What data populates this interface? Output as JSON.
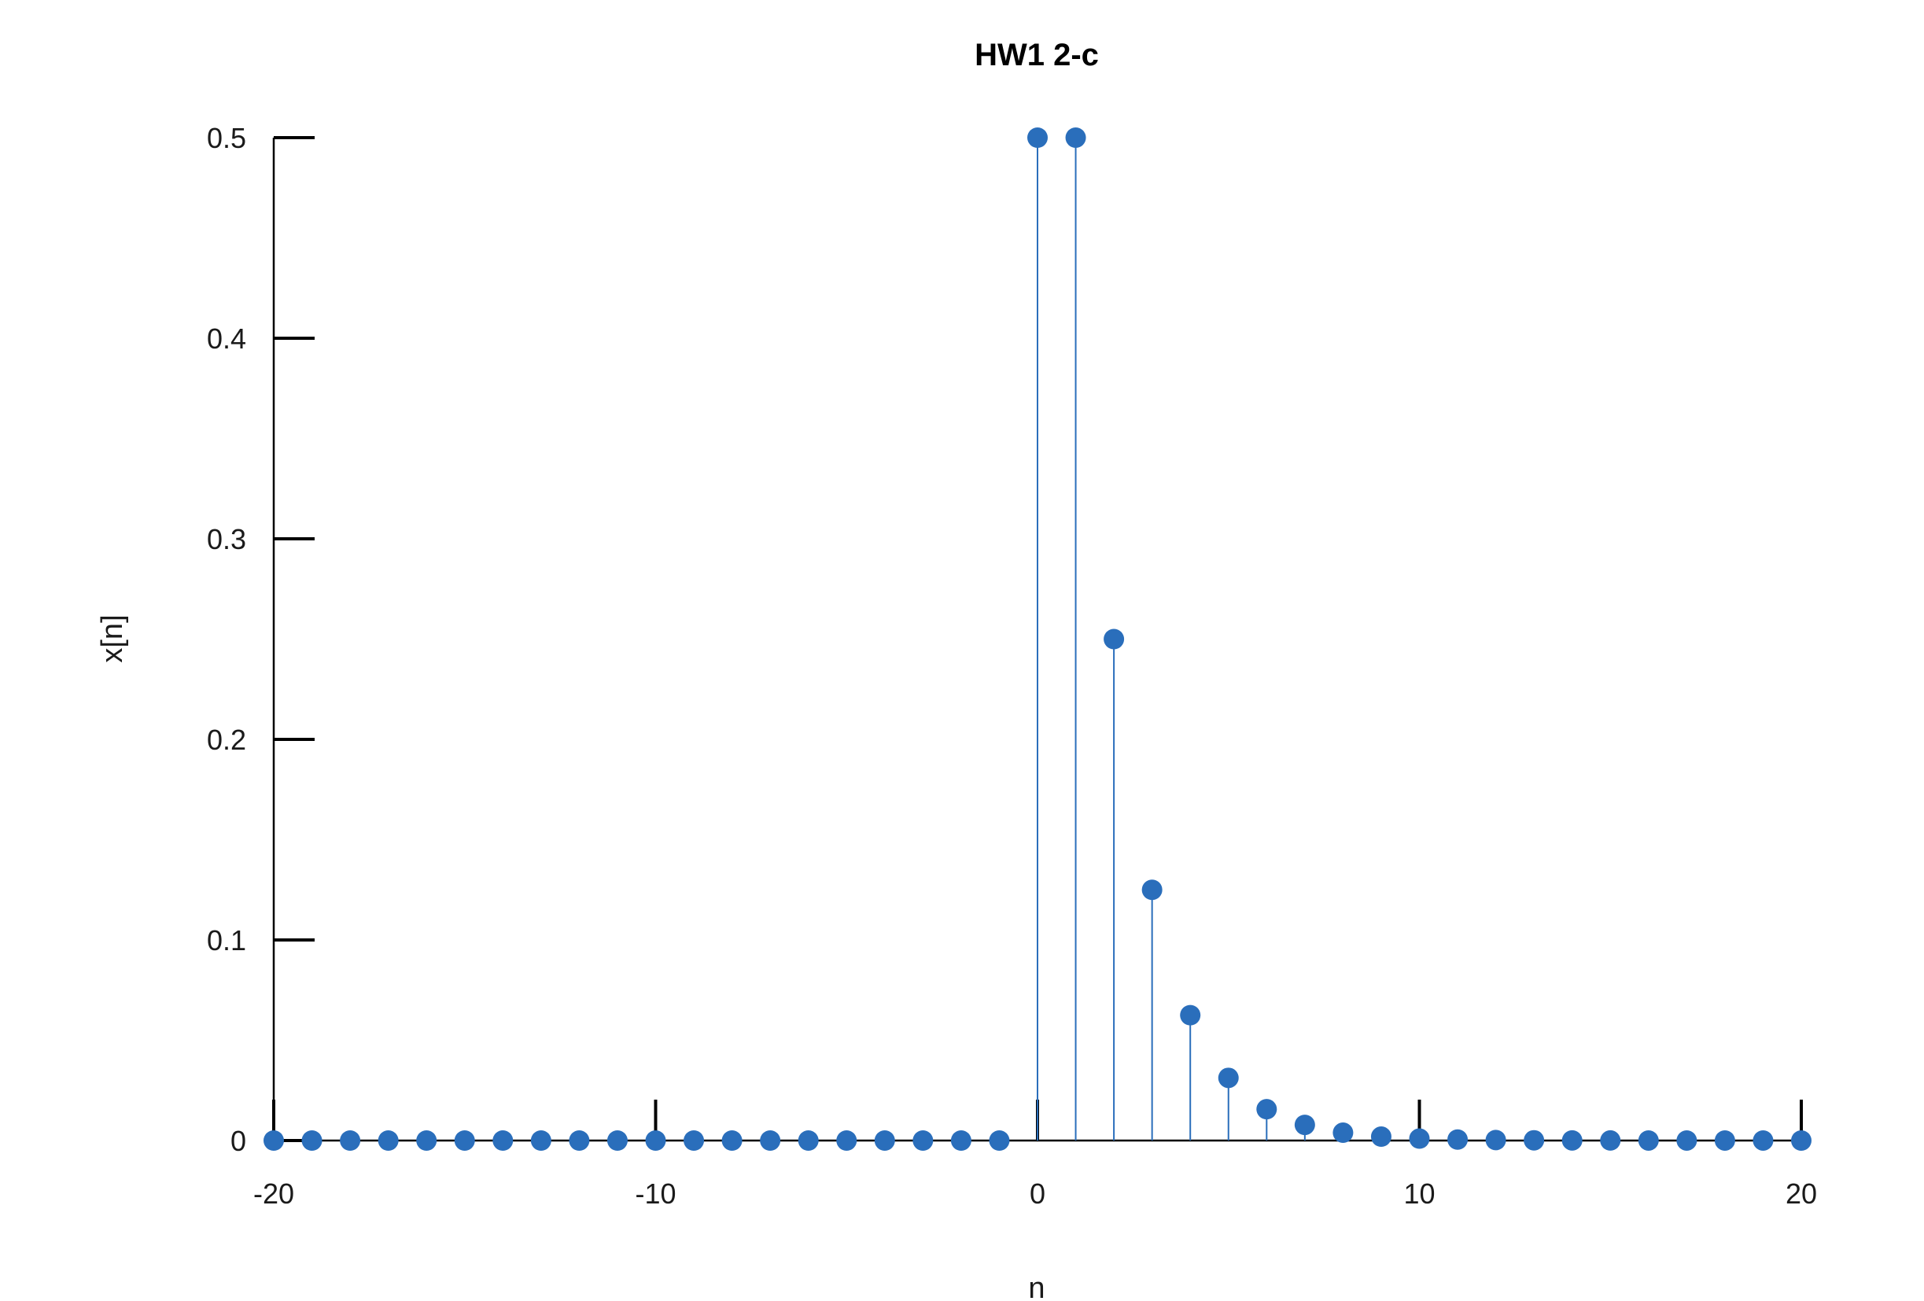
{
  "chart_data": {
    "type": "stem",
    "title": "HW1 2-c",
    "xlabel": "n",
    "ylabel": "x[n]",
    "xlim": [
      -20,
      20
    ],
    "ylim": [
      0,
      0.5
    ],
    "xticks": [
      -20,
      -10,
      0,
      10,
      20
    ],
    "xtick_labels": [
      "-20",
      "-10",
      "0",
      "10",
      "20"
    ],
    "yticks": [
      0,
      0.1,
      0.2,
      0.3,
      0.4,
      0.5
    ],
    "ytick_labels": [
      "0",
      "0.1",
      "0.2",
      "0.3",
      "0.4",
      "0.5"
    ],
    "grid": false,
    "color": "#2a6ebb",
    "x": [
      -20,
      -19,
      -18,
      -17,
      -16,
      -15,
      -14,
      -13,
      -12,
      -11,
      -10,
      -9,
      -8,
      -7,
      -6,
      -5,
      -4,
      -3,
      -2,
      -1,
      0,
      1,
      2,
      3,
      4,
      5,
      6,
      7,
      8,
      9,
      10,
      11,
      12,
      13,
      14,
      15,
      16,
      17,
      18,
      19,
      20
    ],
    "y": [
      0,
      0,
      0,
      0,
      0,
      0,
      0,
      0,
      0,
      0,
      0,
      0,
      0,
      0,
      0,
      0,
      0,
      0,
      0,
      0,
      0.5,
      0.5,
      0.25,
      0.125,
      0.0625,
      0.03125,
      0.015625,
      0.0078125,
      0.00390625,
      0.001953125,
      0.0009765625,
      0.00048828125,
      0.000244140625,
      0.0001220703125,
      6.103515625e-05,
      3.0517578125e-05,
      1.52587890625e-05,
      7.62939453125e-06,
      3.814697265625e-06,
      1.9073486328125e-06,
      9.5367431640625e-07
    ]
  }
}
